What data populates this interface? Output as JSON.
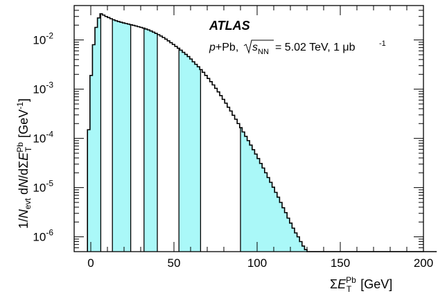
{
  "chart_data": {
    "type": "histogram",
    "xlabel": "ΣE_T^Pb [GeV]",
    "ylabel": "1/N_evt dN/dΣE_T^Pb [GeV^-1]",
    "xlim": [
      -10,
      200
    ],
    "ylim": [
      5e-07,
      0.05
    ],
    "yscale": "log",
    "x_ticks": [
      0,
      50,
      100,
      150,
      200
    ],
    "y_ticks": [
      {
        "value": 1e-06,
        "label": "10^-6"
      },
      {
        "value": 1e-05,
        "label": "10^-5"
      },
      {
        "value": 0.0001,
        "label": "10^-4"
      },
      {
        "value": 0.001,
        "label": "10^-3"
      },
      {
        "value": 0.01,
        "label": "10^-2"
      }
    ],
    "annotations": {
      "experiment": "ATLAS",
      "system": "p+Pb",
      "energy": "= 5.02 TeV, 1 μb",
      "energy_sup": "-1"
    },
    "fill_color": "#aaf8f8",
    "centrality_boundaries": [
      6,
      13,
      24,
      32,
      40,
      53,
      66,
      90
    ],
    "shaded_intervals": [
      [
        -2,
        6
      ],
      [
        13,
        24
      ],
      [
        32,
        40
      ],
      [
        53,
        66
      ],
      [
        90,
        200
      ]
    ],
    "bin_width": 1.5,
    "bins_x_start": -2,
    "values": [
      0.00015,
      0.0019,
      0.008,
      0.018,
      0.028,
      0.034,
      0.032,
      0.03,
      0.0285,
      0.027,
      0.0257,
      0.0246,
      0.0237,
      0.0229,
      0.0222,
      0.0216,
      0.021,
      0.0204,
      0.0198,
      0.0192,
      0.0186,
      0.018,
      0.0174,
      0.0167,
      0.016,
      0.0152,
      0.0144,
      0.0136,
      0.0128,
      0.012,
      0.0112,
      0.0104,
      0.0096,
      0.0088,
      0.0081,
      0.0074,
      0.0068,
      0.0062,
      0.0056,
      0.0051,
      0.0046,
      0.0041,
      0.0036,
      0.0032,
      0.00285,
      0.0025,
      0.0022,
      0.0019,
      0.00165,
      0.00142,
      0.00122,
      0.00104,
      0.00088,
      0.00074,
      0.00062,
      0.00052,
      0.00043,
      0.00036,
      0.000295,
      0.000245,
      0.0002,
      0.000165,
      0.000135,
      0.00011,
      9e-05,
      7.3e-05,
      5.9e-05,
      4.8e-05,
      3.9e-05,
      3.1e-05,
      2.5e-05,
      2e-05,
      1.6e-05,
      1.28e-05,
      1.02e-05,
      8e-06,
      6.4e-06,
      5e-06,
      3.9e-06,
      3.1e-06,
      2.4e-06,
      1.9e-06,
      1.5e-06,
      1.2e-06,
      1e-06,
      8e-07,
      6.5e-07,
      5.5e-07,
      0,
      0,
      0,
      0,
      0,
      0,
      0,
      0,
      0,
      0,
      0,
      0,
      0,
      0,
      0,
      0,
      0,
      0,
      0,
      0,
      0,
      0,
      0,
      0,
      0,
      0,
      0,
      0,
      0,
      0,
      0,
      0,
      0,
      0,
      0,
      0,
      0,
      0,
      0,
      0,
      0,
      0,
      0,
      0,
      0,
      0,
      0,
      0,
      0,
      0,
      0,
      0
    ]
  }
}
